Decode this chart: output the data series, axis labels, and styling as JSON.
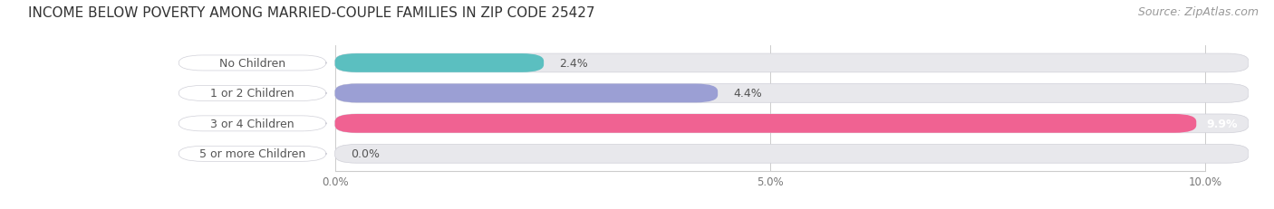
{
  "title": "INCOME BELOW POVERTY AMONG MARRIED-COUPLE FAMILIES IN ZIP CODE 25427",
  "source": "Source: ZipAtlas.com",
  "categories": [
    "No Children",
    "1 or 2 Children",
    "3 or 4 Children",
    "5 or more Children"
  ],
  "values": [
    2.4,
    4.4,
    9.9,
    0.0
  ],
  "bar_colors": [
    "#5bbfc0",
    "#9b9fd4",
    "#f06292",
    "#f5c9a0"
  ],
  "background_color": "#ffffff",
  "bar_bg_color": "#e8e8ec",
  "bar_bg_border": "#d0d0d8",
  "xlim_max": 10.5,
  "xticks": [
    0.0,
    5.0,
    10.0
  ],
  "xtick_labels": [
    "0.0%",
    "5.0%",
    "10.0%"
  ],
  "title_fontsize": 11,
  "source_fontsize": 9,
  "label_fontsize": 9,
  "value_fontsize": 9
}
